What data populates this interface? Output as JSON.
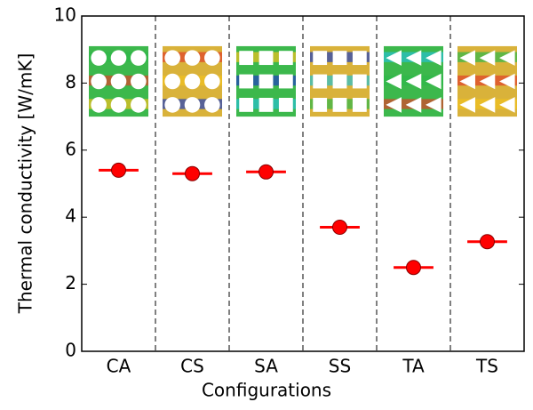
{
  "chart_data": {
    "type": "scatter",
    "x_label": "Configurations",
    "y_label": "Thermal conductivity [W/mK]",
    "categories": [
      "CA",
      "CS",
      "SA",
      "SS",
      "TA",
      "TS"
    ],
    "values": [
      5.4,
      5.3,
      5.35,
      3.7,
      2.5,
      3.27
    ],
    "color": "#ff0000",
    "ylim": [
      0,
      10
    ],
    "yticks": [
      0,
      2,
      4,
      6,
      8,
      10
    ],
    "separators": true
  }
}
